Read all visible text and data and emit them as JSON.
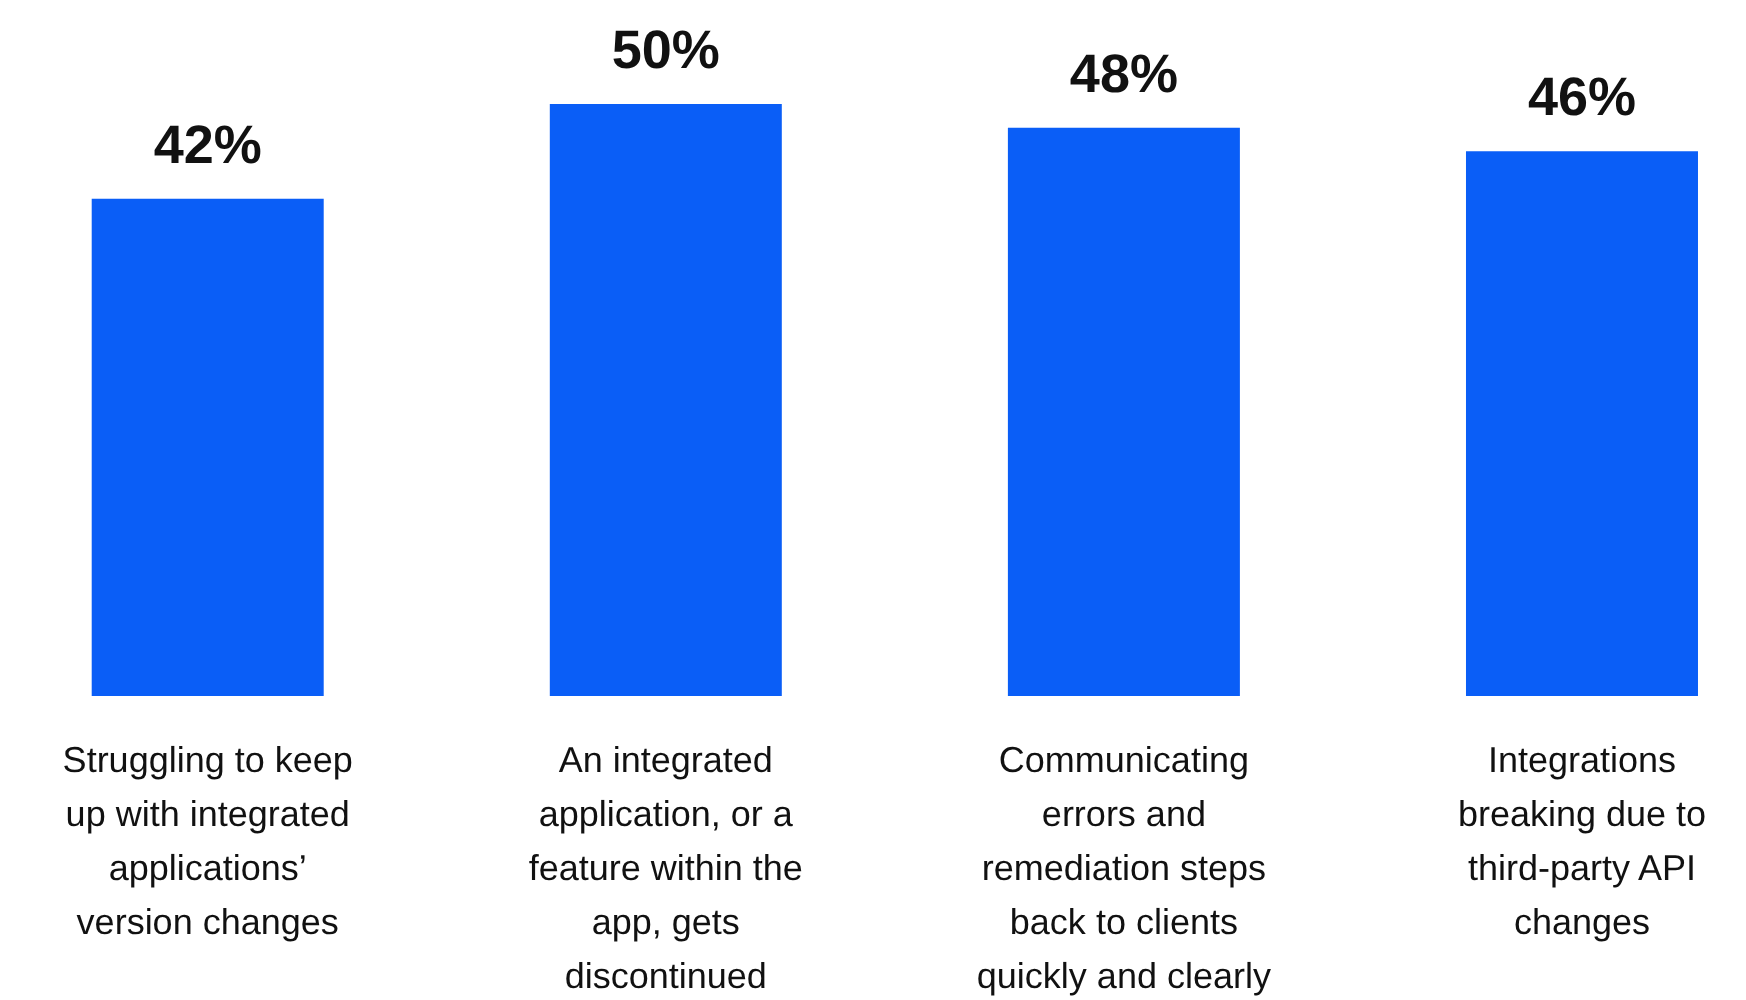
{
  "chart_data": {
    "type": "bar",
    "categories": [
      "Struggling to keep up with integrated applications’ version changes",
      "An integrated application, or a feature within the app, gets discontinued",
      "Communicating errors and remediation steps back to clients quickly and clearly",
      "Integrations breaking due to third-party API changes"
    ],
    "values": [
      42,
      50,
      48,
      46
    ],
    "value_labels": [
      "42%",
      "50%",
      "48%",
      "46%"
    ],
    "color": "#0a5ef7"
  }
}
